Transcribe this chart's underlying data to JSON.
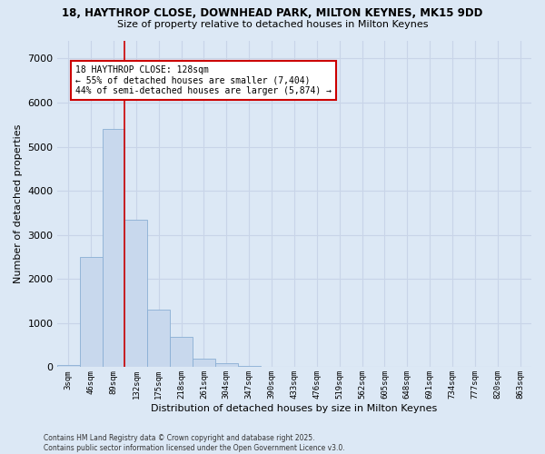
{
  "title_line1": "18, HAYTHROP CLOSE, DOWNHEAD PARK, MILTON KEYNES, MK15 9DD",
  "title_line2": "Size of property relative to detached houses in Milton Keynes",
  "xlabel": "Distribution of detached houses by size in Milton Keynes",
  "ylabel": "Number of detached properties",
  "categories": [
    "3sqm",
    "46sqm",
    "89sqm",
    "132sqm",
    "175sqm",
    "218sqm",
    "261sqm",
    "304sqm",
    "347sqm",
    "390sqm",
    "433sqm",
    "476sqm",
    "519sqm",
    "562sqm",
    "605sqm",
    "648sqm",
    "691sqm",
    "734sqm",
    "777sqm",
    "820sqm",
    "863sqm"
  ],
  "values": [
    60,
    2500,
    5400,
    3350,
    1300,
    680,
    200,
    90,
    30,
    5,
    2,
    1,
    0,
    0,
    0,
    0,
    0,
    0,
    0,
    0,
    0
  ],
  "bar_color": "#c8d8ed",
  "bar_edge_color": "#8aafd4",
  "vline_index": 2.5,
  "vline_color": "#cc0000",
  "annotation_label": "18 HAYTHROP CLOSE: 128sqm",
  "annotation_line1": "← 55% of detached houses are smaller (7,404)",
  "annotation_line2": "44% of semi-detached houses are larger (5,874) →",
  "annotation_box_facecolor": "#ffffff",
  "annotation_box_edgecolor": "#cc0000",
  "ylim": [
    0,
    7400
  ],
  "yticks": [
    0,
    1000,
    2000,
    3000,
    4000,
    5000,
    6000,
    7000
  ],
  "grid_color": "#c8d4e8",
  "axes_bg": "#dce8f5",
  "fig_bg": "#dce8f5",
  "footer_line1": "Contains HM Land Registry data © Crown copyright and database right 2025.",
  "footer_line2": "Contains public sector information licensed under the Open Government Licence v3.0."
}
